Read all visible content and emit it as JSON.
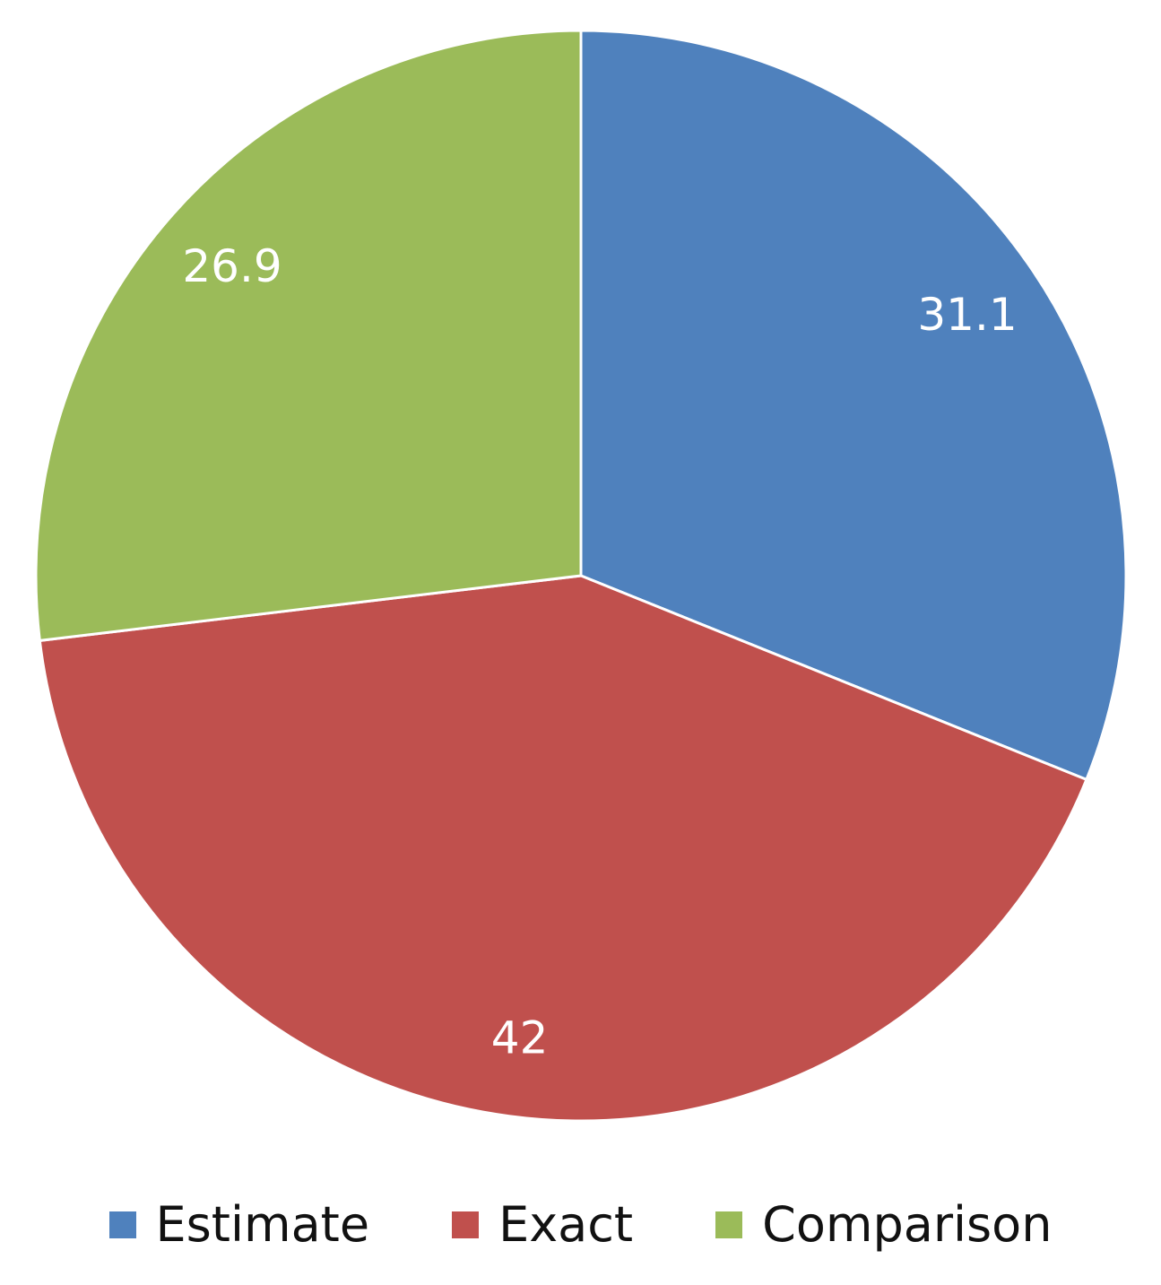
{
  "chart_data": {
    "type": "pie",
    "title": "",
    "categories": [
      "Estimate",
      "Exact",
      "Comparison"
    ],
    "values": [
      31.1,
      42,
      26.9
    ],
    "data_labels": [
      "31.1",
      "42",
      "26.9"
    ],
    "colors": [
      "#4F81BD",
      "#C0504D",
      "#9BBB59"
    ],
    "start_angle_deg": 0,
    "direction": "clockwise",
    "legend": {
      "placement": "bottom",
      "entries": [
        "Estimate",
        "Exact",
        "Comparison"
      ]
    }
  }
}
